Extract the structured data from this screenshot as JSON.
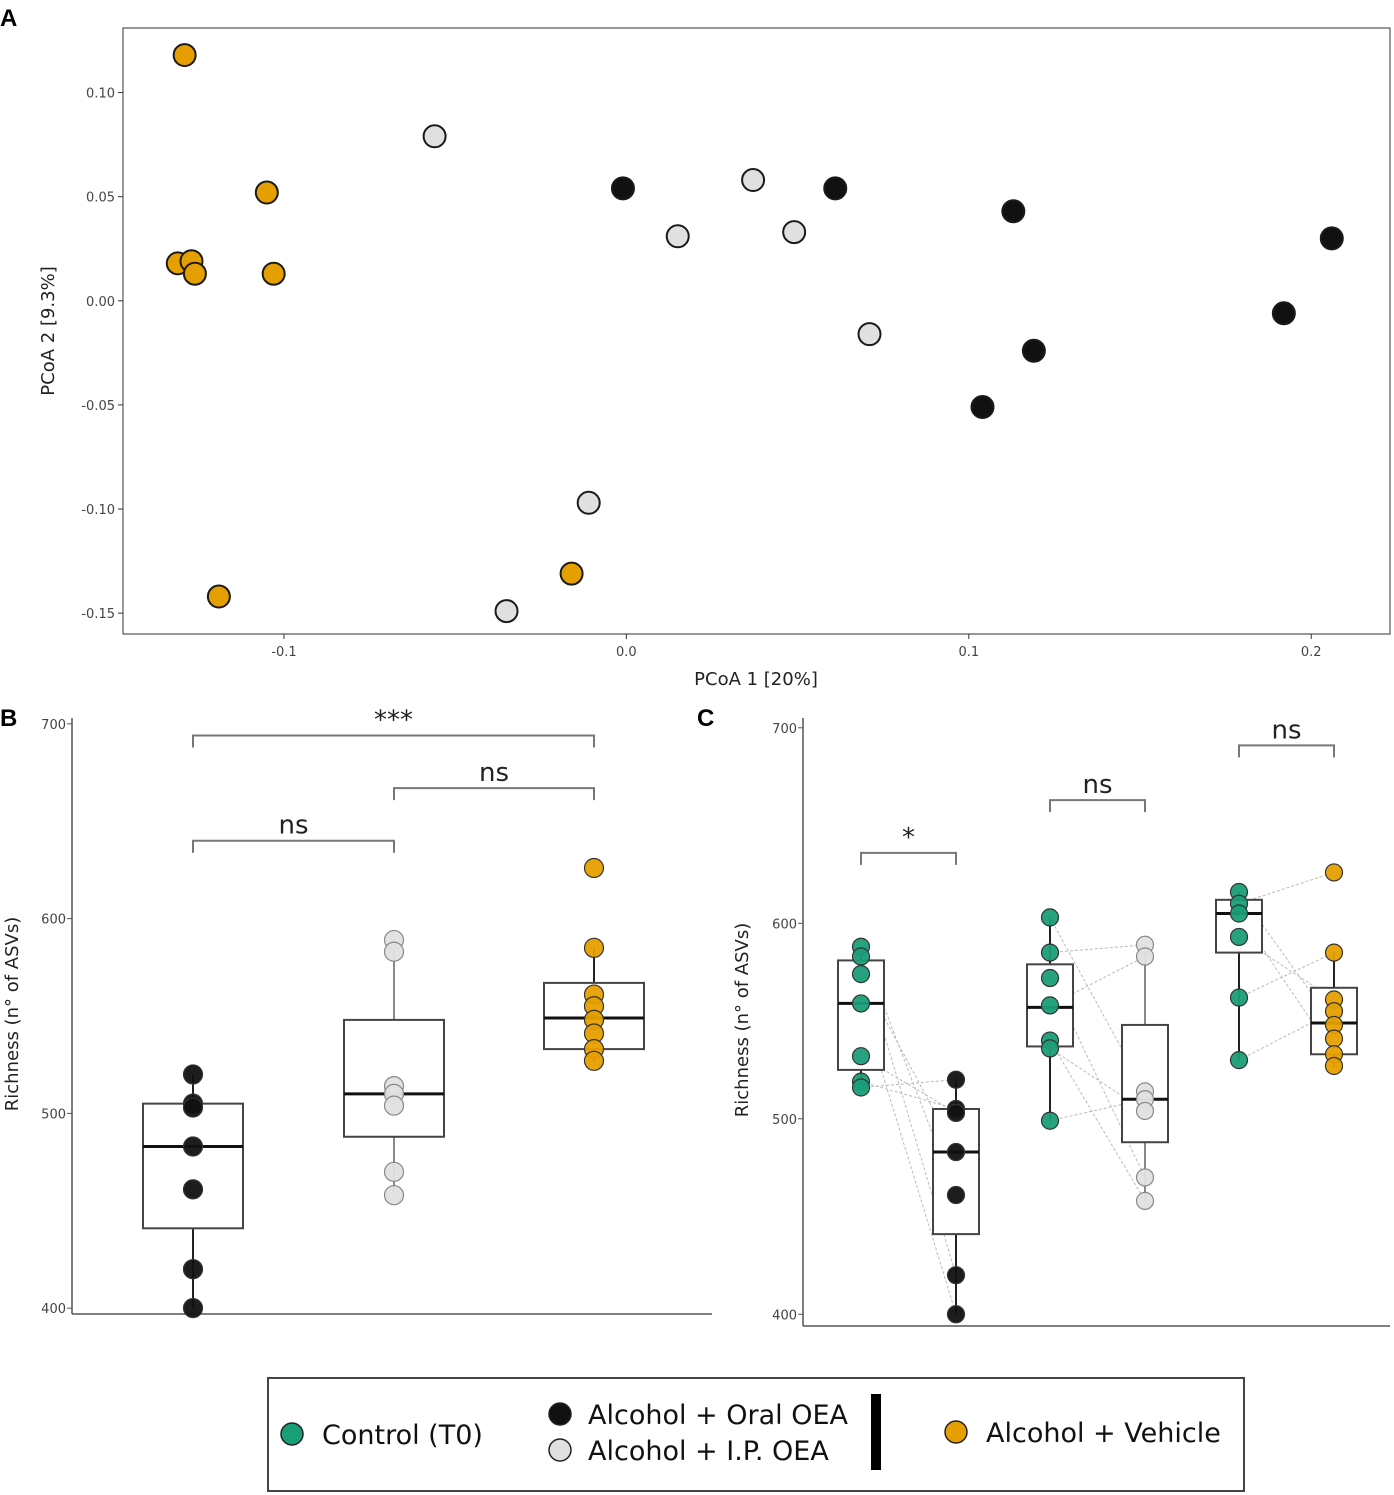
{
  "colors": {
    "control": "#1a9e77",
    "oral": "#111111",
    "ip": "#e0e0e0",
    "vehicle": "#e69f00"
  },
  "legend": {
    "control": "Control (T0)",
    "oral": "Alcohol + Oral OEA",
    "ip": "Alcohol + I.P. OEA",
    "vehicle": "Alcohol + Vehicle"
  },
  "chart_data": [
    {
      "panel": "A",
      "type": "scatter",
      "xlabel": "PCoA 1 [20%]",
      "ylabel": "PCoA 2 [9.3%]",
      "xlim": [
        -0.147,
        0.223
      ],
      "ylim": [
        -0.16,
        0.131
      ],
      "xticks": [
        -0.1,
        0.0,
        0.1,
        0.2
      ],
      "xtick_labels": [
        "-0.1",
        "0.0",
        "0.1",
        "0.2"
      ],
      "yticks": [
        0.1,
        0.05,
        0.0,
        -0.05,
        -0.1,
        -0.15
      ],
      "ytick_labels": [
        "0.10",
        "0.05",
        "0.00",
        "-0.05",
        "-0.10",
        "-0.15"
      ],
      "series": [
        {
          "name": "Alcohol + Vehicle",
          "color_key": "vehicle",
          "x": [
            -0.129,
            -0.105,
            -0.131,
            -0.127,
            -0.126,
            -0.103,
            -0.119,
            -0.016
          ],
          "y": [
            0.118,
            0.052,
            0.018,
            0.019,
            0.013,
            0.013,
            -0.142,
            -0.131
          ]
        },
        {
          "name": "Alcohol + I.P. OEA",
          "color_key": "ip",
          "x": [
            -0.056,
            0.037,
            0.015,
            0.049,
            0.071,
            -0.011,
            -0.035
          ],
          "y": [
            0.079,
            0.058,
            0.031,
            0.033,
            -0.016,
            -0.097,
            -0.149
          ]
        },
        {
          "name": "Alcohol + Oral OEA",
          "color_key": "oral",
          "x": [
            -0.001,
            0.061,
            0.113,
            0.206,
            0.192,
            0.119,
            0.104
          ],
          "y": [
            0.054,
            0.054,
            0.043,
            0.03,
            -0.006,
            -0.024,
            -0.051
          ]
        }
      ]
    },
    {
      "panel": "B",
      "type": "box",
      "ylabel": "Richness (n° of ASVs)",
      "ylim": [
        397,
        703
      ],
      "yticks": [
        700,
        600,
        500,
        400
      ],
      "groups": [
        {
          "name": "Alcohol + Oral OEA",
          "color_key": "oral",
          "box": {
            "q1": 441,
            "median": 483,
            "q3": 505,
            "whisker_low": 400,
            "whisker_high": 520
          },
          "points": [
            520,
            505,
            503,
            483,
            461,
            420,
            400
          ]
        },
        {
          "name": "Alcohol + I.P. OEA",
          "color_key": "ip",
          "box": {
            "q1": 488,
            "median": 510,
            "q3": 548,
            "whisker_low": 458,
            "whisker_high": 589
          },
          "points": [
            589,
            583,
            514,
            510,
            504,
            470,
            458
          ]
        },
        {
          "name": "Alcohol + Vehicle",
          "color_key": "vehicle",
          "box": {
            "q1": 533,
            "median": 549,
            "q3": 567,
            "whisker_low": 526,
            "whisker_high": 585
          },
          "points": [
            626,
            585,
            561,
            555,
            548,
            541,
            533,
            527
          ]
        }
      ],
      "comparisons": [
        {
          "from": 0,
          "to": 2,
          "y": 694,
          "label": "***"
        },
        {
          "from": 1,
          "to": 2,
          "y": 667,
          "label": "ns"
        },
        {
          "from": 0,
          "to": 1,
          "y": 640,
          "label": "ns"
        }
      ]
    },
    {
      "panel": "C",
      "type": "box",
      "ylabel": "Richness (n° of ASVs)",
      "ylim": [
        394,
        705
      ],
      "yticks": [
        700,
        600,
        500,
        400
      ],
      "groups": [
        {
          "name": "Control (T0)",
          "color_key": "control",
          "box": {
            "q1": 525,
            "median": 559,
            "q3": 581,
            "whisker_low": 515,
            "whisker_high": 588
          },
          "points": [
            588,
            583,
            574,
            559,
            532,
            519,
            516
          ]
        },
        {
          "name": "Alcohol + Oral OEA",
          "color_key": "oral",
          "box": {
            "q1": 441,
            "median": 483,
            "q3": 505,
            "whisker_low": 400,
            "whisker_high": 520
          },
          "points": [
            520,
            505,
            503,
            483,
            461,
            420,
            400
          ]
        },
        {
          "name": "Control (T0)",
          "color_key": "control",
          "box": {
            "q1": 537,
            "median": 557,
            "q3": 579,
            "whisker_low": 499,
            "whisker_high": 603
          },
          "points": [
            603,
            585,
            572,
            558,
            540,
            536,
            499
          ]
        },
        {
          "name": "Alcohol + I.P. OEA",
          "color_key": "ip",
          "box": {
            "q1": 488,
            "median": 510,
            "q3": 548,
            "whisker_low": 458,
            "whisker_high": 589
          },
          "points": [
            589,
            583,
            514,
            510,
            504,
            470,
            458
          ]
        },
        {
          "name": "Control (T0)",
          "color_key": "control",
          "box": {
            "q1": 585,
            "median": 605,
            "q3": 612,
            "whisker_low": 530,
            "whisker_high": 616
          },
          "points": [
            616,
            610,
            605,
            593,
            562,
            530
          ]
        },
        {
          "name": "Alcohol + Vehicle",
          "color_key": "vehicle",
          "box": {
            "q1": 533,
            "median": 549,
            "q3": 567,
            "whisker_low": 526,
            "whisker_high": 585
          },
          "points": [
            626,
            585,
            561,
            555,
            548,
            541,
            533,
            527
          ]
        }
      ],
      "pairs": [
        {
          "a": 0,
          "b": 1,
          "a_values": [
            588,
            583,
            574,
            559,
            532,
            519,
            516
          ],
          "b_values": [
            461,
            420,
            483,
            400,
            503,
            505,
            520
          ]
        },
        {
          "a": 2,
          "b": 3,
          "a_values": [
            603,
            585,
            572,
            558,
            540,
            536,
            499
          ],
          "b_values": [
            514,
            589,
            470,
            583,
            458,
            504,
            510
          ]
        },
        {
          "a": 4,
          "b": 5,
          "a_values": [
            616,
            610,
            605,
            593,
            562,
            530
          ],
          "b_values": [
            548,
            626,
            533,
            561,
            585,
            555
          ]
        }
      ],
      "comparisons": [
        {
          "from": 0,
          "to": 1,
          "y": 636,
          "label": "*"
        },
        {
          "from": 2,
          "to": 3,
          "y": 663,
          "label": "ns"
        },
        {
          "from": 4,
          "to": 5,
          "y": 691,
          "label": "ns"
        }
      ]
    }
  ]
}
